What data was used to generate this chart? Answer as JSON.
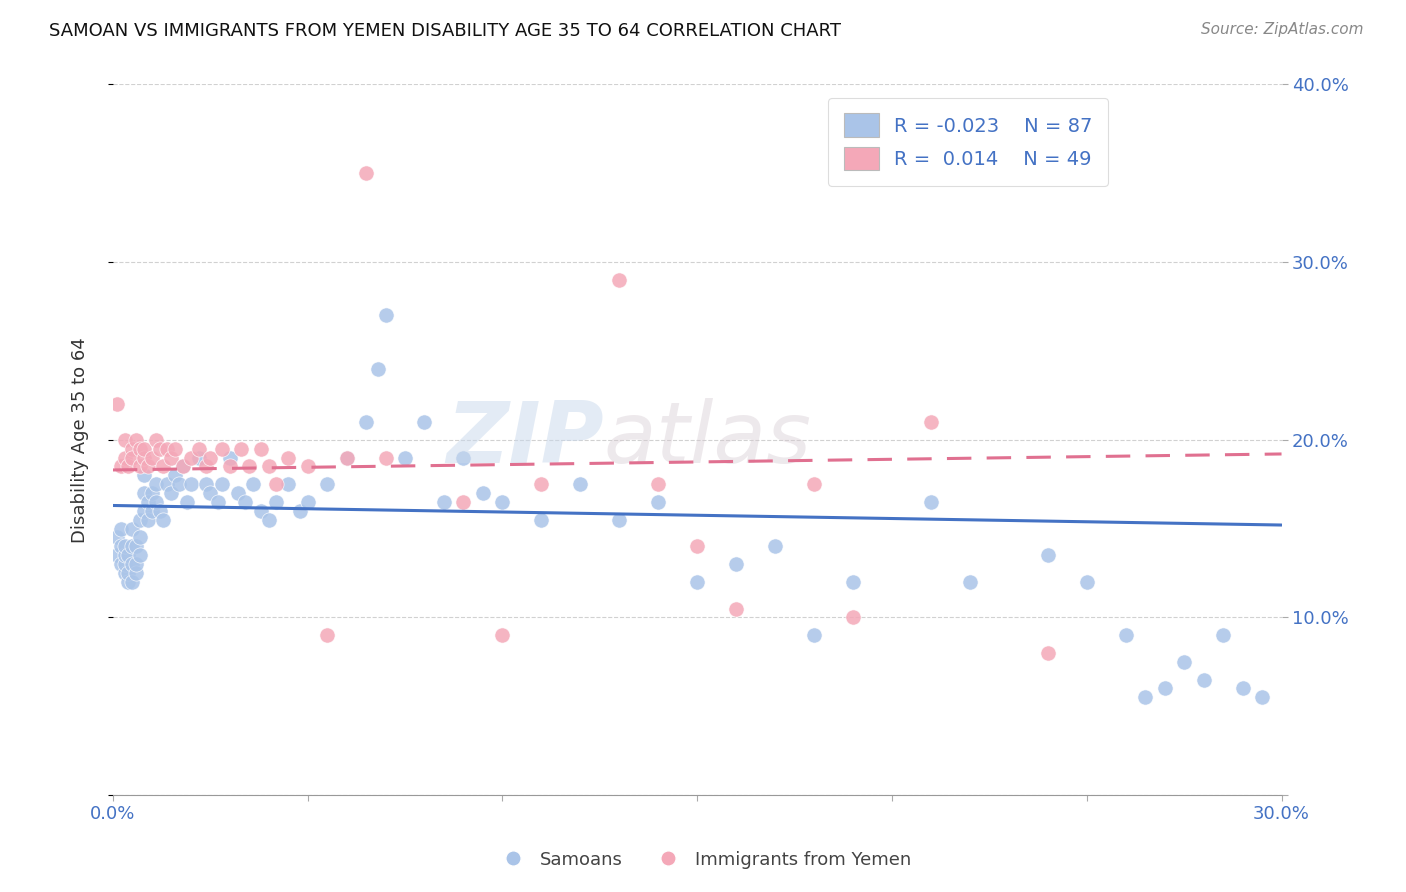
{
  "title": "SAMOAN VS IMMIGRANTS FROM YEMEN DISABILITY AGE 35 TO 64 CORRELATION CHART",
  "source": "Source: ZipAtlas.com",
  "ylabel": "Disability Age 35 to 64",
  "xlim": [
    0.0,
    0.3
  ],
  "ylim": [
    0.0,
    0.4
  ],
  "legend_label_blue": "Samoans",
  "legend_label_pink": "Immigrants from Yemen",
  "R_blue": -0.023,
  "N_blue": 87,
  "R_pink": 0.014,
  "N_pink": 49,
  "color_blue": "#aac4e8",
  "color_pink": "#f4a8b8",
  "line_blue": "#4472c4",
  "line_pink": "#e07090",
  "watermark_zip": "ZIP",
  "watermark_atlas": "atlas",
  "blue_scatter_x": [
    0.001,
    0.001,
    0.002,
    0.002,
    0.002,
    0.003,
    0.003,
    0.003,
    0.003,
    0.004,
    0.004,
    0.004,
    0.005,
    0.005,
    0.005,
    0.005,
    0.006,
    0.006,
    0.006,
    0.007,
    0.007,
    0.007,
    0.008,
    0.008,
    0.008,
    0.009,
    0.009,
    0.01,
    0.01,
    0.011,
    0.011,
    0.012,
    0.013,
    0.014,
    0.015,
    0.016,
    0.017,
    0.018,
    0.019,
    0.02,
    0.022,
    0.024,
    0.025,
    0.027,
    0.028,
    0.03,
    0.032,
    0.034,
    0.036,
    0.038,
    0.04,
    0.042,
    0.045,
    0.048,
    0.05,
    0.055,
    0.06,
    0.065,
    0.068,
    0.07,
    0.075,
    0.08,
    0.085,
    0.09,
    0.095,
    0.1,
    0.11,
    0.12,
    0.13,
    0.14,
    0.15,
    0.16,
    0.17,
    0.18,
    0.19,
    0.21,
    0.22,
    0.24,
    0.25,
    0.26,
    0.265,
    0.27,
    0.275,
    0.28,
    0.285,
    0.29,
    0.295
  ],
  "blue_scatter_y": [
    0.135,
    0.145,
    0.13,
    0.14,
    0.15,
    0.125,
    0.13,
    0.135,
    0.14,
    0.12,
    0.125,
    0.135,
    0.12,
    0.13,
    0.14,
    0.15,
    0.125,
    0.13,
    0.14,
    0.135,
    0.145,
    0.155,
    0.16,
    0.17,
    0.18,
    0.155,
    0.165,
    0.17,
    0.16,
    0.175,
    0.165,
    0.16,
    0.155,
    0.175,
    0.17,
    0.18,
    0.175,
    0.185,
    0.165,
    0.175,
    0.19,
    0.175,
    0.17,
    0.165,
    0.175,
    0.19,
    0.17,
    0.165,
    0.175,
    0.16,
    0.155,
    0.165,
    0.175,
    0.16,
    0.165,
    0.175,
    0.19,
    0.21,
    0.24,
    0.27,
    0.19,
    0.21,
    0.165,
    0.19,
    0.17,
    0.165,
    0.155,
    0.175,
    0.155,
    0.165,
    0.12,
    0.13,
    0.14,
    0.09,
    0.12,
    0.165,
    0.12,
    0.135,
    0.12,
    0.09,
    0.055,
    0.06,
    0.075,
    0.065,
    0.09,
    0.06,
    0.055
  ],
  "pink_scatter_x": [
    0.001,
    0.002,
    0.003,
    0.003,
    0.004,
    0.005,
    0.005,
    0.006,
    0.007,
    0.007,
    0.008,
    0.008,
    0.009,
    0.01,
    0.011,
    0.012,
    0.013,
    0.014,
    0.015,
    0.016,
    0.018,
    0.02,
    0.022,
    0.024,
    0.025,
    0.028,
    0.03,
    0.033,
    0.035,
    0.038,
    0.04,
    0.042,
    0.045,
    0.05,
    0.055,
    0.06,
    0.065,
    0.07,
    0.09,
    0.1,
    0.11,
    0.13,
    0.14,
    0.15,
    0.16,
    0.18,
    0.19,
    0.21,
    0.24
  ],
  "pink_scatter_y": [
    0.22,
    0.185,
    0.19,
    0.2,
    0.185,
    0.195,
    0.19,
    0.2,
    0.195,
    0.185,
    0.19,
    0.195,
    0.185,
    0.19,
    0.2,
    0.195,
    0.185,
    0.195,
    0.19,
    0.195,
    0.185,
    0.19,
    0.195,
    0.185,
    0.19,
    0.195,
    0.185,
    0.195,
    0.185,
    0.195,
    0.185,
    0.175,
    0.19,
    0.185,
    0.09,
    0.19,
    0.35,
    0.19,
    0.165,
    0.09,
    0.175,
    0.29,
    0.175,
    0.14,
    0.105,
    0.175,
    0.1,
    0.21,
    0.08
  ],
  "trend_blue_x0": 0.0,
  "trend_blue_x1": 0.3,
  "trend_blue_y0": 0.163,
  "trend_blue_y1": 0.152,
  "trend_pink_x0": 0.0,
  "trend_pink_x1": 0.3,
  "trend_pink_y0": 0.183,
  "trend_pink_y1": 0.192
}
